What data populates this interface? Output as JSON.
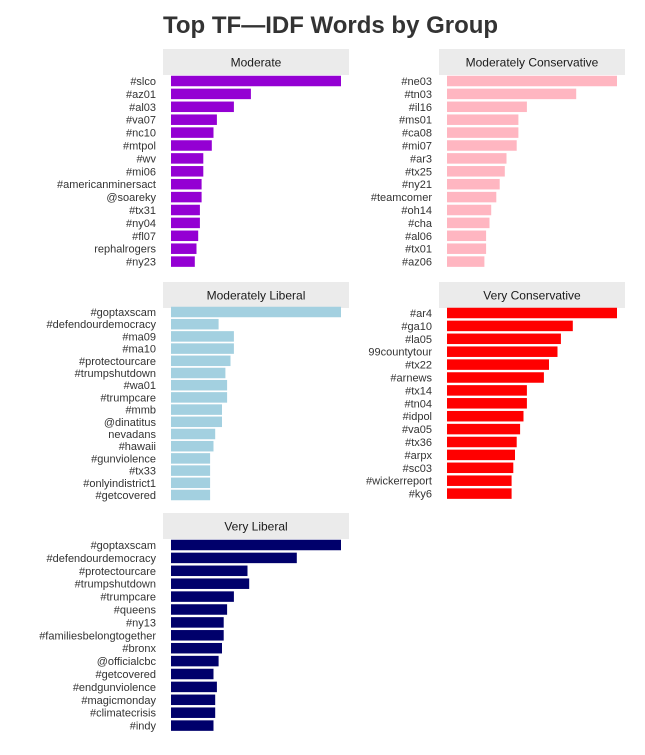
{
  "title": "Top TF—IDF Words by Group",
  "chart_data": {
    "type": "bar",
    "orientation": "horizontal",
    "title": "Top TF—IDF Words by Group",
    "xlabel": "",
    "ylabel": "",
    "x_axis_labels_shown": false,
    "grid": false,
    "scale": "free per panel",
    "panels": [
      {
        "name": "Moderate",
        "color": "#9400D3",
        "categories": [
          "#slco",
          "#az01",
          "#al03",
          "#va07",
          "#nc10",
          "#mtpol",
          "#wv",
          "#mi06",
          "#americanminersact",
          "@soareky",
          "#tx31",
          "#ny04",
          "#fl07",
          "rephalrogers",
          "#ny23"
        ],
        "values": [
          1.0,
          0.47,
          0.37,
          0.27,
          0.25,
          0.24,
          0.19,
          0.19,
          0.18,
          0.18,
          0.17,
          0.17,
          0.16,
          0.15,
          0.14
        ]
      },
      {
        "name": "Moderately Conservative",
        "color": "#FFB6C1",
        "categories": [
          "#ne03",
          "#tn03",
          "#il16",
          "#ms01",
          "#ca08",
          "#mi07",
          "#ar3",
          "#tx25",
          "#ny21",
          "#teamcomer",
          "#oh14",
          "#cha",
          "#al06",
          "#tx01",
          "#az06"
        ],
        "values": [
          1.0,
          0.76,
          0.47,
          0.42,
          0.42,
          0.41,
          0.35,
          0.34,
          0.31,
          0.29,
          0.26,
          0.25,
          0.23,
          0.23,
          0.22
        ]
      },
      {
        "name": "Moderately Liberal",
        "color": "#A3D0E0",
        "categories": [
          "#goptaxscam",
          "#defendourdemocracy",
          "#ma09",
          "#ma10",
          "#protectourcare",
          "#trumpshutdown",
          "#wa01",
          "#trumpcare",
          "#mmb",
          "@dinatitus",
          "nevadans",
          "#hawaii",
          "#gunviolence",
          "#tx33",
          "#onlyindistrict1",
          "#getcovered"
        ],
        "values": [
          1.0,
          0.28,
          0.37,
          0.37,
          0.35,
          0.32,
          0.33,
          0.33,
          0.3,
          0.3,
          0.26,
          0.25,
          0.23,
          0.23,
          0.23,
          0.23
        ]
      },
      {
        "name": "Very Conservative",
        "color": "#FF0000",
        "categories": [
          "#ar4",
          "#ga10",
          "#la05",
          "99countytour",
          "#tx22",
          "#arnews",
          "#tx14",
          "#tn04",
          "#idpol",
          "#va05",
          "#tx36",
          "#arpx",
          "#sc03",
          "#wickerreport",
          "#ky6"
        ],
        "values": [
          1.0,
          0.74,
          0.67,
          0.65,
          0.6,
          0.57,
          0.47,
          0.47,
          0.45,
          0.43,
          0.41,
          0.4,
          0.39,
          0.38,
          0.38
        ]
      },
      {
        "name": "Very Liberal",
        "color": "#00006B",
        "categories": [
          "#goptaxscam",
          "#defendourdemocracy",
          "#protectourcare",
          "#trumpshutdown",
          "#trumpcare",
          "#queens",
          "#ny13",
          "#familiesbelongtogether",
          "#bronx",
          "@officialcbc",
          "#getcovered",
          "#endgunviolence",
          "#magicmonday",
          "#climatecrisis",
          "#indy"
        ],
        "values": [
          1.0,
          0.74,
          0.45,
          0.46,
          0.37,
          0.33,
          0.31,
          0.31,
          0.3,
          0.28,
          0.25,
          0.27,
          0.26,
          0.26,
          0.25
        ]
      }
    ]
  }
}
